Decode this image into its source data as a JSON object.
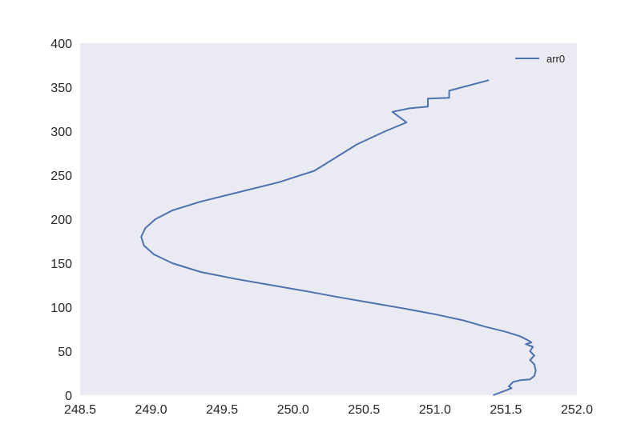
{
  "chart_data": {
    "type": "line",
    "title": "",
    "xlabel": "",
    "ylabel": "",
    "xlim": [
      248.5,
      252.0
    ],
    "ylim": [
      0,
      400
    ],
    "xticks": [
      "248.5",
      "249.0",
      "249.5",
      "250.0",
      "250.5",
      "251.0",
      "251.5",
      "252.0"
    ],
    "yticks": [
      "0",
      "50",
      "100",
      "150",
      "200",
      "250",
      "300",
      "350",
      "400"
    ],
    "grid": false,
    "legend_position": "top-right",
    "background_color": "#eaeaf2",
    "series": [
      {
        "name": "arr0",
        "color": "#4c72b0",
        "x": [
          251.41,
          251.54,
          251.52,
          251.55,
          251.6,
          251.67,
          251.7,
          251.71,
          251.7,
          251.67,
          251.7,
          251.67,
          251.69,
          251.64,
          251.68,
          251.66,
          251.6,
          251.5,
          251.35,
          251.2,
          251.0,
          250.8,
          250.55,
          250.3,
          250.1,
          249.85,
          249.6,
          249.35,
          249.15,
          249.02,
          248.95,
          248.93,
          248.96,
          249.03,
          249.15,
          249.35,
          249.6,
          249.9,
          250.15,
          250.3,
          250.45,
          250.65,
          250.8,
          250.7,
          250.82,
          250.95,
          250.95,
          251.1,
          251.1,
          251.38
        ],
        "y": [
          0,
          8,
          10,
          15,
          17,
          18,
          22,
          28,
          35,
          40,
          45,
          50,
          55,
          58,
          60,
          62,
          67,
          72,
          78,
          85,
          92,
          98,
          105,
          112,
          118,
          125,
          132,
          140,
          150,
          160,
          170,
          180,
          190,
          200,
          210,
          220,
          230,
          242,
          255,
          270,
          285,
          300,
          310,
          322,
          326,
          328,
          337,
          338,
          346,
          358
        ]
      }
    ]
  }
}
